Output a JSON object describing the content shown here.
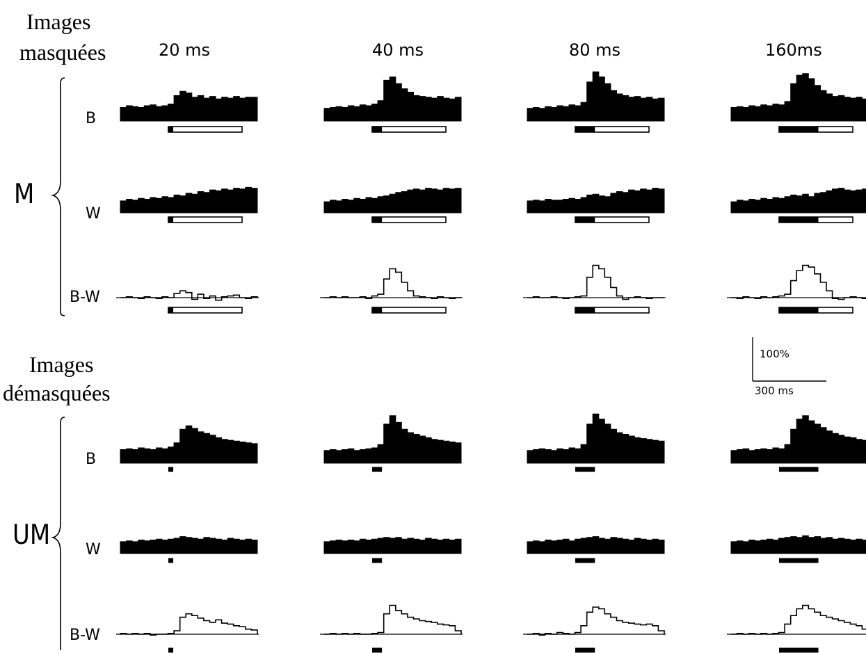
{
  "sections": [
    {
      "label_line1": "Images",
      "label_line2": "masquées",
      "group": "M"
    },
    {
      "label_line1": "Images",
      "label_line2": "démasquées",
      "group": "UM"
    }
  ],
  "conditions": [
    "20 ms",
    "40 ms",
    "80 ms",
    "160ms"
  ],
  "row_labels": [
    "B",
    "W",
    "B-W"
  ],
  "scale_bar": {
    "y_label": "100%",
    "x_label": "300 ms"
  },
  "colors": {
    "ink": "#000000",
    "background": "#ffffff"
  },
  "chart_data": {
    "type": "histogram-grid",
    "units": {
      "time": "ms",
      "response": "% (see scale bar)"
    },
    "stimulus_bar": {
      "masked": {
        "black_ms": [
          20,
          40,
          80,
          160
        ],
        "white_total_ms": 300
      },
      "unmasked": {
        "black_ms": [
          20,
          40,
          80,
          160
        ]
      }
    },
    "panels": [
      {
        "group": "M",
        "row": "B",
        "condition": "20 ms",
        "series": [
          16,
          18,
          17,
          16,
          18,
          19,
          17,
          18,
          20,
          30,
          35,
          33,
          28,
          30,
          27,
          29,
          26,
          28,
          27,
          29,
          27,
          28,
          28
        ]
      },
      {
        "group": "M",
        "row": "W",
        "condition": "20 ms",
        "series": [
          14,
          16,
          15,
          17,
          16,
          18,
          17,
          19,
          18,
          21,
          20,
          23,
          22,
          25,
          24,
          27,
          26,
          28,
          27,
          29,
          28,
          30,
          29
        ]
      },
      {
        "group": "M",
        "row": "B-W",
        "condition": "20 ms",
        "series": [
          0,
          1,
          0,
          -1,
          1,
          0,
          -1,
          1,
          0,
          5,
          8,
          6,
          -2,
          4,
          -1,
          2,
          -3,
          1,
          2,
          3,
          0,
          -1,
          1
        ]
      },
      {
        "group": "M",
        "row": "B",
        "condition": "40 ms",
        "series": [
          15,
          16,
          17,
          16,
          18,
          17,
          19,
          18,
          20,
          24,
          48,
          52,
          44,
          38,
          34,
          30,
          29,
          28,
          27,
          29,
          27,
          26,
          28
        ]
      },
      {
        "group": "M",
        "row": "W",
        "condition": "40 ms",
        "series": [
          13,
          15,
          14,
          16,
          15,
          17,
          16,
          18,
          17,
          19,
          20,
          22,
          24,
          25,
          27,
          28,
          27,
          29,
          28,
          27,
          29,
          28,
          29
        ]
      },
      {
        "group": "M",
        "row": "B-W",
        "condition": "40 ms",
        "series": [
          0,
          1,
          0,
          1,
          0,
          0,
          1,
          -1,
          2,
          4,
          22,
          34,
          30,
          18,
          8,
          2,
          1,
          0,
          -1,
          1,
          0,
          -1,
          0
        ]
      },
      {
        "group": "M",
        "row": "B",
        "condition": "80 ms",
        "series": [
          15,
          16,
          15,
          17,
          16,
          18,
          17,
          19,
          18,
          22,
          46,
          58,
          52,
          44,
          36,
          32,
          30,
          28,
          29,
          27,
          28,
          26,
          27
        ]
      },
      {
        "group": "M",
        "row": "W",
        "condition": "80 ms",
        "series": [
          14,
          15,
          14,
          16,
          15,
          15,
          16,
          17,
          16,
          18,
          21,
          22,
          20,
          19,
          23,
          25,
          24,
          27,
          26,
          28,
          27,
          29,
          28
        ]
      },
      {
        "group": "M",
        "row": "B-W",
        "condition": "80 ms",
        "series": [
          0,
          1,
          0,
          0,
          1,
          0,
          -1,
          0,
          1,
          2,
          24,
          38,
          34,
          24,
          12,
          2,
          -2,
          0,
          1,
          0,
          -1,
          0,
          0
        ]
      },
      {
        "group": "M",
        "row": "B",
        "condition": "160ms",
        "series": [
          16,
          17,
          16,
          18,
          17,
          19,
          18,
          20,
          19,
          23,
          44,
          54,
          56,
          50,
          42,
          36,
          32,
          29,
          30,
          28,
          27,
          28,
          26
        ]
      },
      {
        "group": "M",
        "row": "W",
        "condition": "160ms",
        "series": [
          13,
          15,
          14,
          16,
          15,
          17,
          16,
          18,
          17,
          19,
          21,
          20,
          22,
          19,
          23,
          24,
          26,
          28,
          29,
          27,
          26,
          27,
          28
        ]
      },
      {
        "group": "M",
        "row": "B-W",
        "condition": "160ms",
        "series": [
          0,
          -1,
          1,
          0,
          -1,
          1,
          0,
          1,
          2,
          4,
          20,
          32,
          38,
          36,
          28,
          18,
          8,
          -1,
          -2,
          0,
          1,
          0,
          -1
        ]
      },
      {
        "group": "UM",
        "row": "B",
        "condition": "20 ms",
        "series": [
          16,
          17,
          16,
          18,
          17,
          16,
          18,
          17,
          19,
          24,
          40,
          44,
          41,
          37,
          35,
          33,
          30,
          28,
          27,
          26,
          25,
          24,
          23
        ]
      },
      {
        "group": "UM",
        "row": "W",
        "condition": "20 ms",
        "series": [
          14,
          15,
          14,
          16,
          15,
          16,
          17,
          16,
          17,
          18,
          20,
          19,
          18,
          17,
          19,
          18,
          17,
          16,
          18,
          17,
          16,
          17,
          16
        ]
      },
      {
        "group": "UM",
        "row": "B-W",
        "condition": "20 ms",
        "series": [
          1,
          0,
          1,
          0,
          1,
          -1,
          0,
          0,
          1,
          4,
          20,
          24,
          22,
          19,
          16,
          14,
          17,
          13,
          12,
          10,
          9,
          6,
          5
        ]
      },
      {
        "group": "UM",
        "row": "B",
        "condition": "40 ms",
        "series": [
          15,
          16,
          15,
          16,
          17,
          15,
          16,
          17,
          18,
          22,
          46,
          56,
          48,
          40,
          36,
          34,
          32,
          30,
          28,
          27,
          26,
          25,
          24
        ]
      },
      {
        "group": "UM",
        "row": "W",
        "condition": "40 ms",
        "series": [
          14,
          15,
          16,
          15,
          16,
          15,
          17,
          16,
          17,
          18,
          19,
          18,
          19,
          17,
          18,
          17,
          16,
          18,
          17,
          16,
          17,
          16,
          17
        ]
      },
      {
        "group": "UM",
        "row": "B-W",
        "condition": "40 ms",
        "series": [
          0,
          1,
          0,
          1,
          0,
          1,
          0,
          0,
          1,
          2,
          24,
          34,
          28,
          24,
          20,
          18,
          16,
          15,
          14,
          12,
          11,
          10,
          4
        ]
      },
      {
        "group": "UM",
        "row": "B",
        "condition": "80 ms",
        "series": [
          15,
          16,
          17,
          16,
          15,
          17,
          16,
          18,
          17,
          22,
          46,
          58,
          52,
          46,
          40,
          36,
          34,
          32,
          30,
          29,
          28,
          27,
          26
        ]
      },
      {
        "group": "UM",
        "row": "W",
        "condition": "80 ms",
        "series": [
          14,
          15,
          14,
          16,
          15,
          16,
          17,
          15,
          17,
          18,
          19,
          20,
          18,
          17,
          19,
          18,
          17,
          16,
          18,
          17,
          16,
          17,
          16
        ]
      },
      {
        "group": "UM",
        "row": "B-W",
        "condition": "80 ms",
        "series": [
          0,
          1,
          -1,
          1,
          0,
          2,
          1,
          0,
          2,
          10,
          26,
          32,
          30,
          24,
          20,
          16,
          14,
          13,
          12,
          11,
          12,
          10,
          4
        ]
      },
      {
        "group": "UM",
        "row": "B",
        "condition": "160ms",
        "series": [
          15,
          16,
          17,
          15,
          16,
          17,
          16,
          18,
          17,
          22,
          40,
          52,
          56,
          50,
          46,
          42,
          38,
          35,
          33,
          31,
          30,
          28,
          27
        ]
      },
      {
        "group": "UM",
        "row": "W",
        "condition": "160ms",
        "series": [
          14,
          15,
          14,
          16,
          15,
          16,
          17,
          16,
          18,
          19,
          20,
          19,
          21,
          19,
          20,
          18,
          19,
          17,
          18,
          17,
          16,
          17,
          16
        ]
      },
      {
        "group": "UM",
        "row": "B-W",
        "condition": "160ms",
        "series": [
          0,
          1,
          0,
          1,
          0,
          1,
          0,
          1,
          2,
          12,
          22,
          30,
          34,
          30,
          26,
          22,
          20,
          18,
          16,
          14,
          12,
          10,
          6
        ]
      }
    ]
  }
}
